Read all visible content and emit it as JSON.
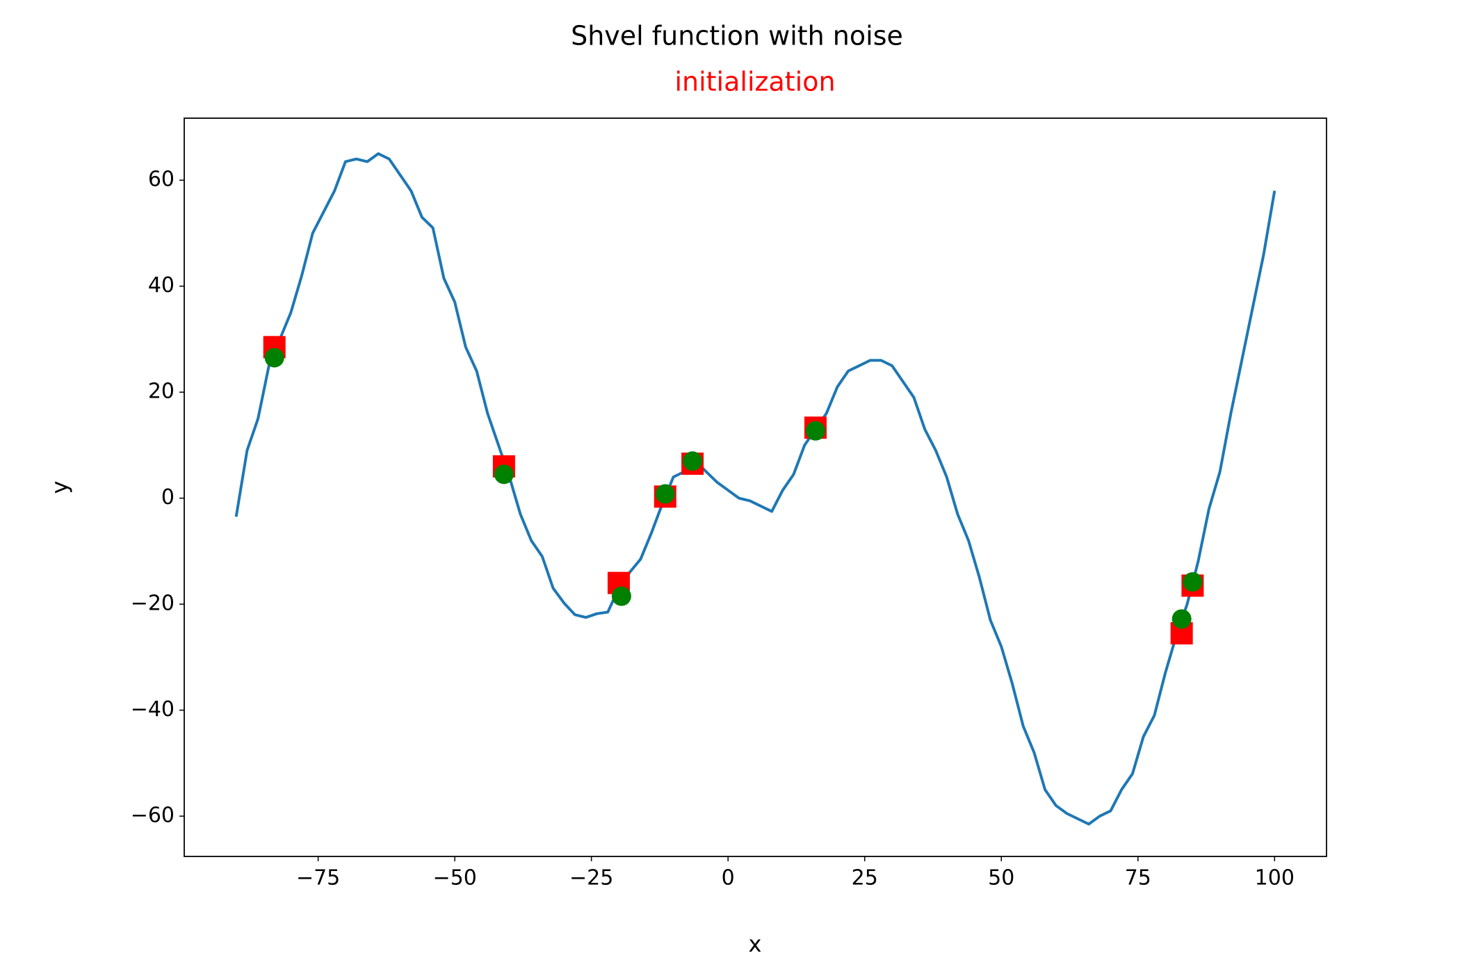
{
  "chart_data": {
    "type": "line",
    "title": "Shvel function with noise",
    "subtitle": "initialization",
    "subtitle_color": "#ff0000",
    "xlabel": "x",
    "ylabel": "y",
    "xlim": [
      -99.5,
      109.5
    ],
    "ylim": [
      -67.6,
      71.7
    ],
    "xticks": [
      {
        "value": -75,
        "label": "−75"
      },
      {
        "value": -50,
        "label": "−50"
      },
      {
        "value": -25,
        "label": "−25"
      },
      0,
      25,
      50,
      75,
      100
    ],
    "yticks": [
      {
        "value": -60,
        "label": "−60"
      },
      {
        "value": -40,
        "label": "−40"
      },
      {
        "value": -20,
        "label": "−20"
      },
      0,
      20,
      40,
      60
    ],
    "grid": false,
    "series": [
      {
        "marker": "line",
        "color": "#1f77b4",
        "x": [
          -90,
          -88,
          -86,
          -84,
          -82,
          -80,
          -78,
          -76,
          -74,
          -72,
          -70,
          -68,
          -66,
          -64,
          -62,
          -60,
          -58,
          -56,
          -54,
          -52,
          -50,
          -48,
          -46,
          -44,
          -42,
          -40,
          -38,
          -36,
          -34,
          -32,
          -30,
          -28,
          -26,
          -24,
          -22,
          -20,
          -18,
          -16,
          -14,
          -12,
          -10,
          -8,
          -6,
          -4,
          -2,
          0,
          2,
          4,
          6,
          8,
          10,
          12,
          14,
          16,
          18,
          20,
          22,
          24,
          26,
          28,
          30,
          32,
          34,
          36,
          38,
          40,
          42,
          44,
          46,
          48,
          50,
          52,
          54,
          56,
          58,
          60,
          62,
          64,
          66,
          68,
          70,
          72,
          74,
          76,
          78,
          80,
          82,
          84,
          86,
          88,
          90,
          92,
          94,
          96,
          98,
          100
        ],
        "values": [
          -3.5,
          9,
          15,
          25,
          30,
          35,
          42,
          50,
          54,
          58,
          63.5,
          64,
          63.5,
          65,
          64,
          61,
          58,
          53,
          51,
          41.5,
          37,
          28.5,
          24,
          16,
          10,
          4,
          -3,
          -8,
          -11,
          -17,
          -19.8,
          -22,
          -22.5,
          -21.8,
          -21.5,
          -17,
          -14,
          -11.5,
          -6.5,
          -1,
          4,
          5,
          7,
          5,
          3,
          1.5,
          0,
          -0.5,
          -1.5,
          -2.5,
          1.5,
          4.5,
          10,
          13,
          16,
          21,
          24,
          25,
          26,
          26,
          25,
          22,
          19,
          13,
          9,
          4,
          -3,
          -8,
          -15,
          -23,
          -28,
          -35,
          -43,
          -48,
          -55,
          -58,
          -59.5,
          -60.5,
          -61.5,
          -60,
          -59,
          -55,
          -52,
          -45,
          -41,
          -33,
          -26,
          -20,
          -12,
          -2,
          5,
          16,
          26,
          36,
          46,
          58
        ]
      },
      {
        "marker": "square",
        "color": "#ff0000",
        "x": [
          -83,
          -41,
          -20,
          -11.5,
          -6.5,
          16,
          83,
          85
        ],
        "values": [
          28.5,
          6,
          -16,
          0.3,
          6.5,
          13.3,
          -25.5,
          -16.5
        ]
      },
      {
        "marker": "circle",
        "color": "#008000",
        "x": [
          -83,
          -41,
          -19.5,
          -11.5,
          -6.5,
          16,
          83,
          85
        ],
        "values": [
          26.5,
          4.5,
          -18.5,
          0.8,
          7,
          12.7,
          -22.8,
          -15.8
        ]
      }
    ]
  }
}
